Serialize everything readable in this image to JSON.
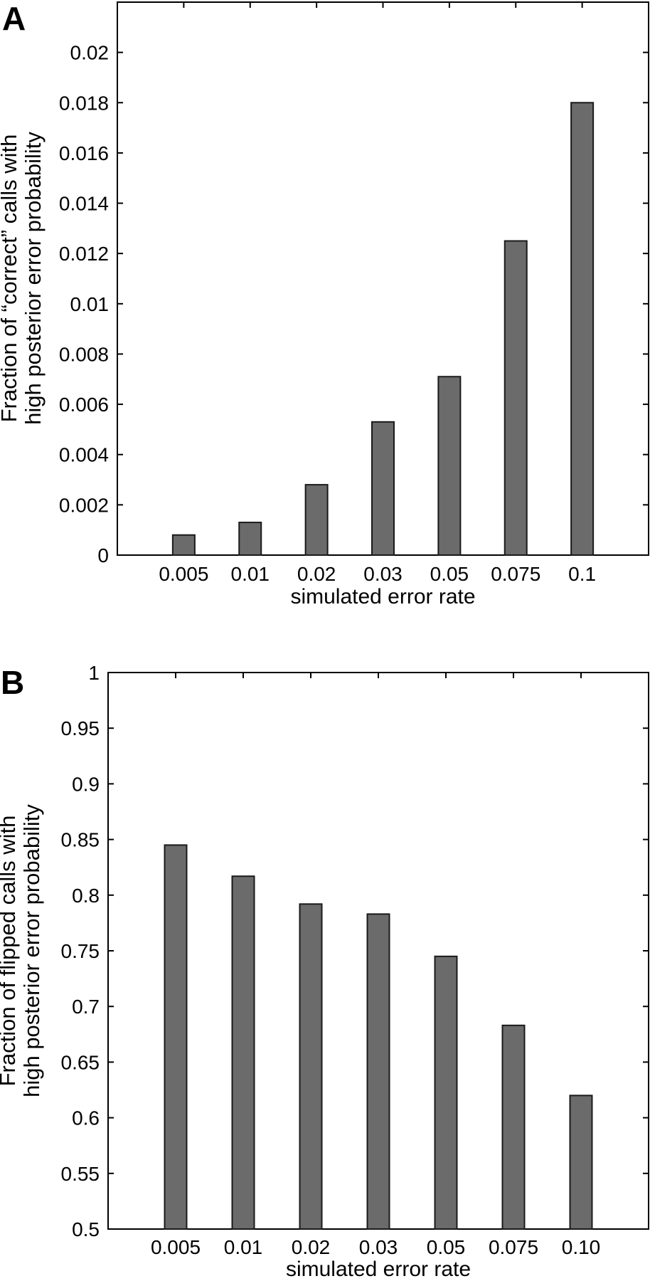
{
  "figure": {
    "background": "#ffffff",
    "panels": [
      {
        "label": "A",
        "ylabel_line1": "Fraction of “correct” calls with",
        "ylabel_line2": "high posterior error probability",
        "xlabel": "simulated error rate"
      },
      {
        "label": "B",
        "ylabel_line1": "Fraction of flipped calls with",
        "ylabel_line2": "high posterior error probability",
        "xlabel": "simulated error rate"
      }
    ]
  },
  "chart_data": [
    {
      "type": "bar",
      "panel": "A",
      "title": "",
      "xlabel": "simulated error rate",
      "ylabel": "Fraction of “correct” calls with high posterior error probability",
      "categories": [
        "0.005",
        "0.01",
        "0.02",
        "0.03",
        "0.05",
        "0.075",
        "0.1"
      ],
      "values": [
        0.0008,
        0.0013,
        0.0028,
        0.0053,
        0.0071,
        0.0125,
        0.018
      ],
      "ylim": [
        0,
        0.022
      ],
      "ytick_values": [
        0,
        0.002,
        0.004,
        0.006,
        0.008,
        0.01,
        0.012,
        0.014,
        0.016,
        0.018,
        0.02
      ],
      "ytick_labels": [
        "0",
        "0.002",
        "0.004",
        "0.006",
        "0.008",
        "0.01",
        "0.012",
        "0.014",
        "0.016",
        "0.018",
        "0.02"
      ],
      "grid": false,
      "legend": null,
      "bar_color": "#6b6b6b",
      "bar_edge_color": "#1a1a1a"
    },
    {
      "type": "bar",
      "panel": "B",
      "title": "",
      "xlabel": "simulated error rate",
      "ylabel": "Fraction of flipped calls with high posterior error probability",
      "categories": [
        "0.005",
        "0.01",
        "0.02",
        "0.03",
        "0.05",
        "0.075",
        "0.10"
      ],
      "values": [
        0.845,
        0.817,
        0.792,
        0.783,
        0.745,
        0.683,
        0.62
      ],
      "ylim": [
        0.5,
        1.0
      ],
      "ytick_values": [
        0.5,
        0.55,
        0.6,
        0.65,
        0.7,
        0.75,
        0.8,
        0.85,
        0.9,
        0.95,
        1
      ],
      "ytick_labels": [
        "0.5",
        "0.55",
        "0.6",
        "0.65",
        "0.7",
        "0.75",
        "0.8",
        "0.85",
        "0.9",
        "0.95",
        "1"
      ],
      "grid": false,
      "legend": null,
      "bar_color": "#6b6b6b",
      "bar_edge_color": "#1a1a1a"
    }
  ]
}
